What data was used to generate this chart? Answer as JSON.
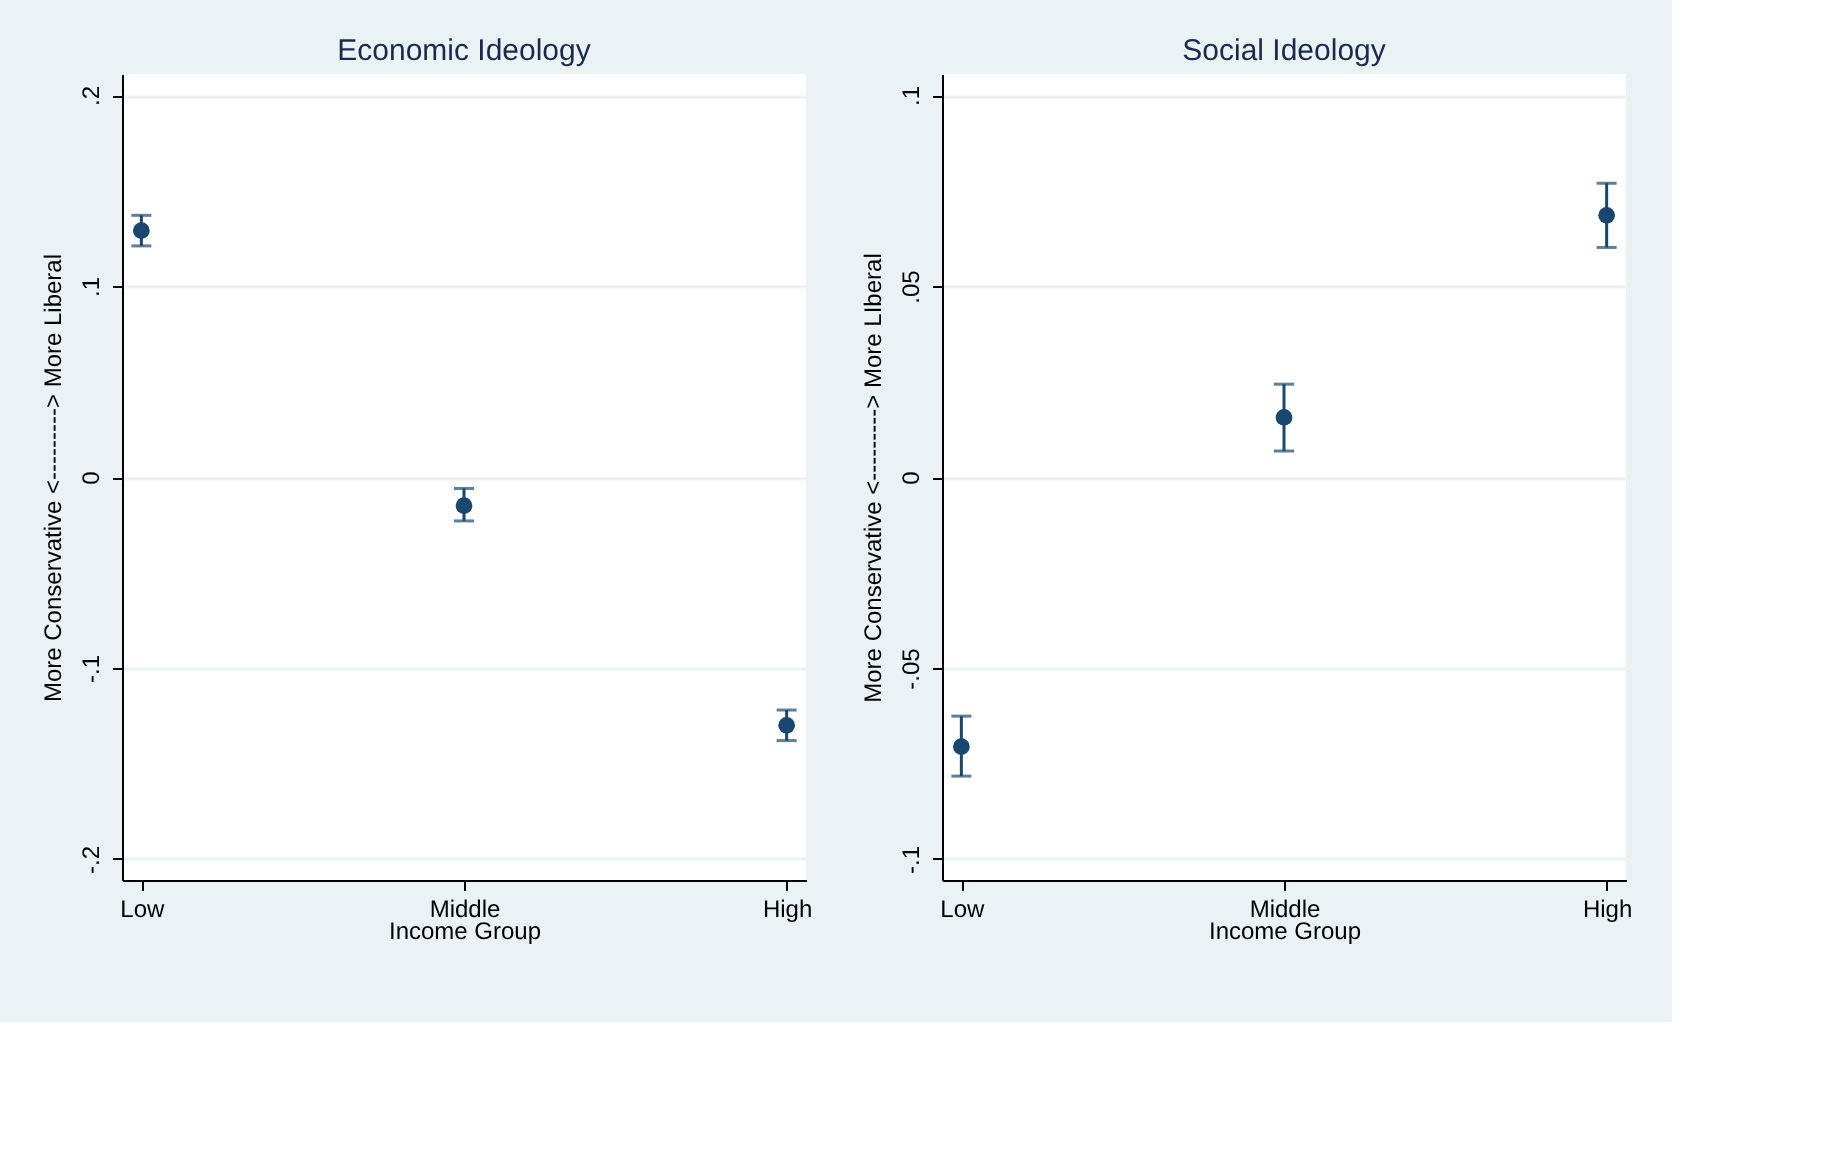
{
  "chart_data": [
    {
      "type": "scatter",
      "title": "Economic Ideology",
      "xlabel": "Income Group",
      "ylabel": "More Conservative <---------> More Liberal",
      "categories": [
        "Low",
        "Middle",
        "High"
      ],
      "values": [
        0.129,
        -0.015,
        -0.13
      ],
      "errors": [
        [
          0.121,
          0.137
        ],
        [
          -0.023,
          -0.006
        ],
        [
          -0.138,
          -0.122
        ]
      ],
      "color": "#1a476f",
      "marker": "circle",
      "grid": "y",
      "ylim": [
        -0.211,
        0.211
      ],
      "yticks": [
        {
          "value": -0.2,
          "label": "-.2"
        },
        {
          "value": -0.1,
          "label": "-.1"
        },
        0,
        {
          "value": 0.1,
          "label": ".1"
        },
        {
          "value": 0.2,
          "label": ".2"
        }
      ]
    },
    {
      "type": "scatter",
      "title": "Social Ideology",
      "xlabel": "Income Group",
      "ylabel": "More Conservative <---------> More LIberal",
      "categories": [
        "Low",
        "Middle",
        "High"
      ],
      "values": [
        -0.0706,
        0.0156,
        0.0685
      ],
      "errors": [
        [
          -0.0783,
          -0.0626
        ],
        [
          0.0068,
          0.0243
        ],
        [
          0.0601,
          0.0769
        ]
      ],
      "color": "#1a476f",
      "marker": "circle",
      "grid": "y",
      "ylim": [
        -0.1055,
        0.1055
      ],
      "yticks": [
        {
          "value": -0.1,
          "label": "-.1"
        },
        {
          "value": -0.05,
          "label": "-.05"
        },
        0,
        {
          "value": 0.05,
          "label": ".05"
        },
        {
          "value": 0.1,
          "label": ".1"
        }
      ]
    }
  ]
}
